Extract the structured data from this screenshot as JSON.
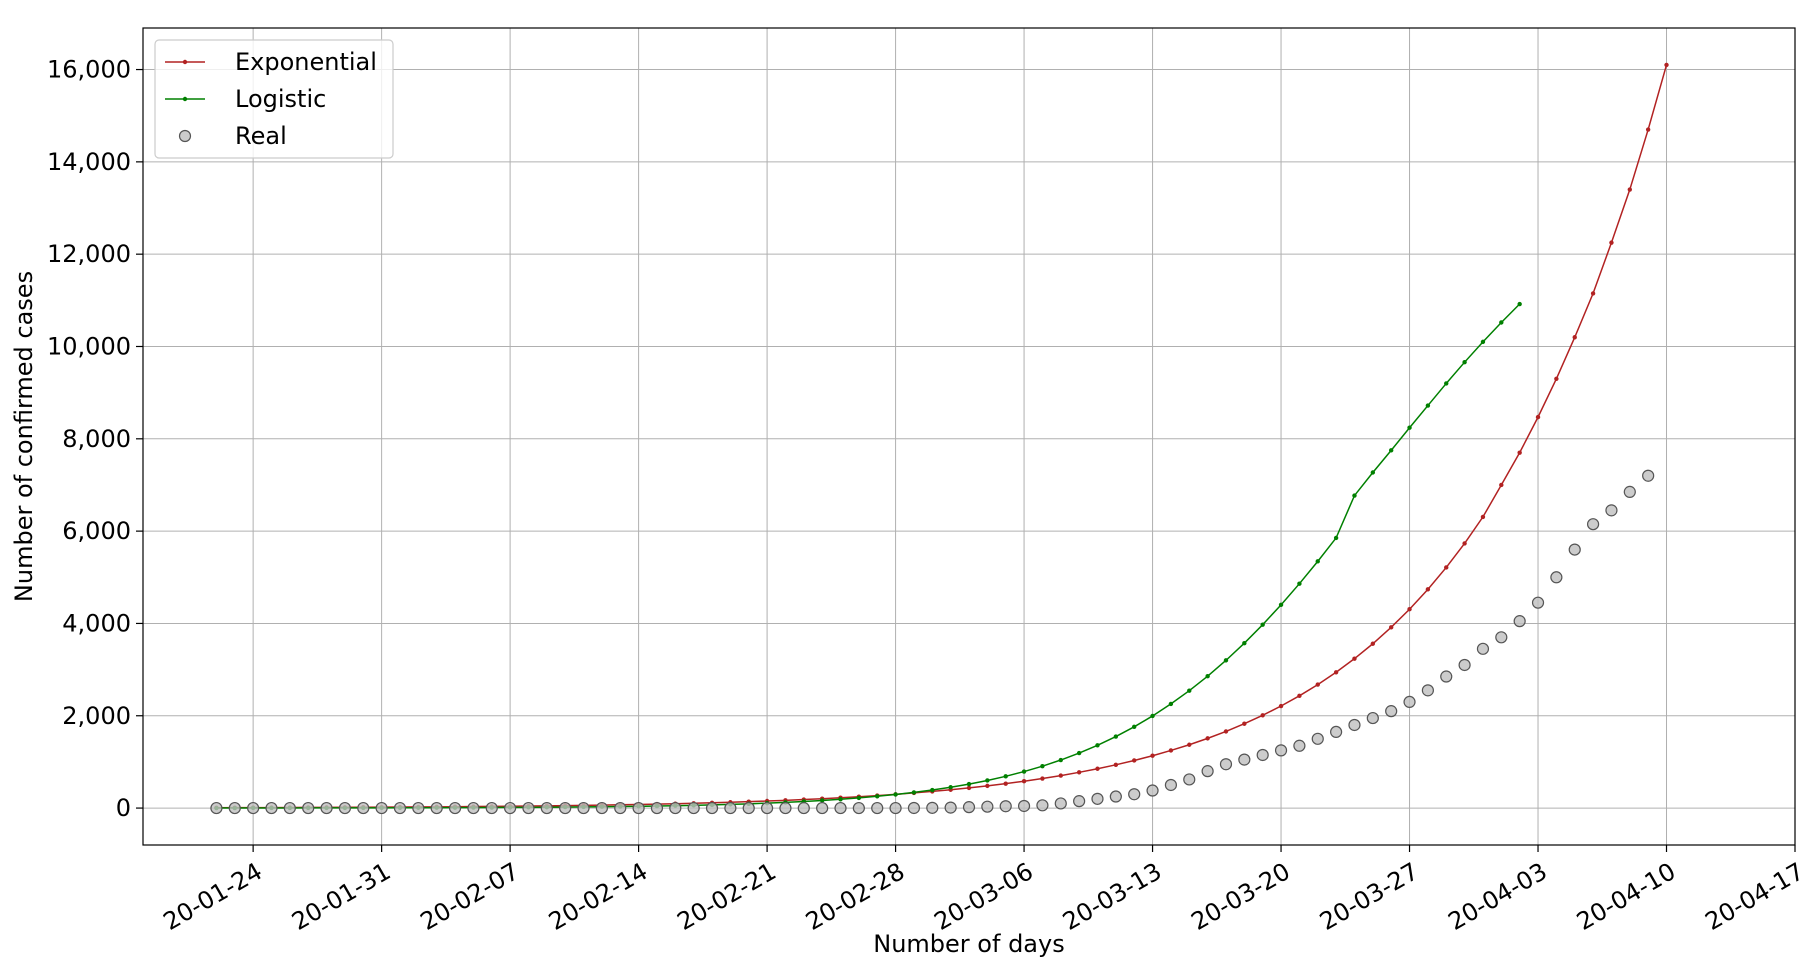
{
  "chart_data": {
    "type": "line",
    "xlabel": "Number of days",
    "ylabel": "Number of confirmed cases",
    "x_start": "2020-01-22",
    "x_ticks": [
      "20-01-24",
      "20-01-31",
      "20-02-07",
      "20-02-14",
      "20-02-21",
      "20-02-28",
      "20-03-06",
      "20-03-13",
      "20-03-20",
      "20-03-27",
      "20-04-03",
      "20-04-10",
      "20-04-17"
    ],
    "x_tick_dates": [
      "2020-01-24",
      "2020-01-31",
      "2020-02-07",
      "2020-02-14",
      "2020-02-21",
      "2020-02-28",
      "2020-03-06",
      "2020-03-13",
      "2020-03-20",
      "2020-03-27",
      "2020-04-03",
      "2020-04-10",
      "2020-04-17"
    ],
    "xlim": [
      "2020-01-18",
      "2020-04-17"
    ],
    "y_ticks": [
      0,
      2000,
      4000,
      6000,
      8000,
      10000,
      12000,
      14000,
      16000
    ],
    "y_tick_labels": [
      "0",
      "2,000",
      "4,000",
      "6,000",
      "8,000",
      "10,000",
      "12,000",
      "14,000",
      "16,000"
    ],
    "ylim": [
      -800,
      16900
    ],
    "grid": true,
    "legend_position": "top-left",
    "series": [
      {
        "name": "Exponential",
        "color": "#b22222",
        "marker": "dot",
        "values": [
          8,
          9,
          10,
          11,
          12,
          14,
          15,
          17,
          18,
          20,
          22,
          25,
          27,
          30,
          33,
          36,
          40,
          44,
          48,
          53,
          59,
          65,
          71,
          78,
          86,
          95,
          104,
          115,
          126,
          139,
          153,
          168,
          185,
          203,
          224,
          246,
          271,
          298,
          328,
          361,
          397,
          437,
          481,
          529,
          582,
          640,
          704,
          775,
          852,
          937,
          1031,
          1134,
          1248,
          1372,
          1510,
          1661,
          1827,
          2010,
          2211,
          2432,
          2675,
          2942,
          3237,
          3560,
          3916,
          4308,
          4739,
          5213,
          5734,
          6308,
          7000,
          7700,
          8470,
          9300,
          10200,
          11150,
          12250,
          13400,
          14700,
          16100
        ]
      },
      {
        "name": "Logistic",
        "color": "#008000",
        "marker": "dot",
        "values": [
          1,
          1,
          2,
          2,
          2,
          3,
          3,
          4,
          4,
          5,
          6,
          7,
          8,
          9,
          10,
          12,
          14,
          16,
          18,
          21,
          25,
          29,
          33,
          38,
          44,
          51,
          59,
          69,
          80,
          92,
          107,
          123,
          143,
          165,
          191,
          220,
          255,
          294,
          339,
          391,
          451,
          519,
          598,
          688,
          791,
          908,
          1041,
          1191,
          1360,
          1550,
          1761,
          1996,
          2257,
          2543,
          2857,
          3200,
          3572,
          3973,
          4403,
          4861,
          5345,
          5853,
          6770,
          7270,
          7750,
          8240,
          8720,
          9200,
          9660,
          10100,
          10520,
          10920
        ]
      },
      {
        "name": "Real",
        "color": "#bfbfbf",
        "edge_color": "#555555",
        "marker": "circle",
        "values": [
          0,
          0,
          0,
          0,
          0,
          0,
          0,
          0,
          0,
          0,
          0,
          0,
          0,
          0,
          0,
          0,
          0,
          0,
          0,
          0,
          0,
          0,
          0,
          0,
          0,
          0,
          0,
          0,
          0,
          0,
          0,
          0,
          0,
          0,
          0,
          0,
          0,
          0,
          2,
          5,
          10,
          20,
          30,
          40,
          45,
          60,
          100,
          150,
          200,
          250,
          300,
          380,
          500,
          620,
          800,
          950,
          1050,
          1150,
          1250,
          1350,
          1500,
          1650,
          1800,
          1950,
          2100,
          2300,
          2550,
          2850,
          3100,
          3450,
          3700,
          4050,
          4450,
          5000,
          5600,
          6150,
          6450,
          6850,
          7200
        ]
      }
    ]
  }
}
